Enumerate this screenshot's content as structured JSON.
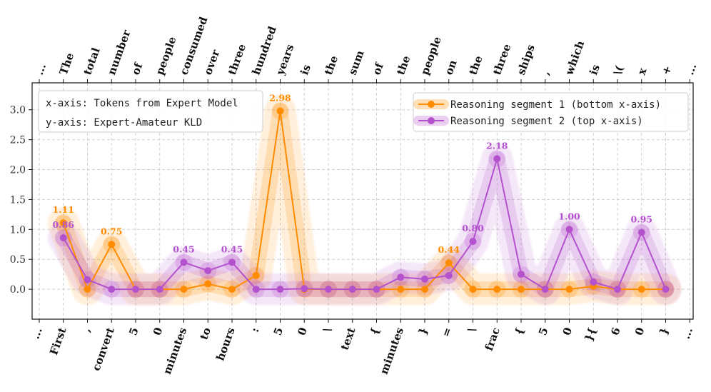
{
  "chart_data": {
    "type": "line",
    "title": "",
    "ylim": [
      -0.5,
      3.45
    ],
    "yticks": [
      0.0,
      0.5,
      1.0,
      1.5,
      2.0,
      2.5,
      3.0
    ],
    "ytick_labels": [
      "0.0",
      "0.5",
      "1.0",
      "1.5",
      "2.0",
      "2.5",
      "3.0"
    ],
    "grid": true,
    "axis_note": {
      "x": "x-axis: Tokens from Expert Model",
      "y": "y-axis: Expert-Amateur KLD"
    },
    "bottom_tokens": [
      "...",
      "First",
      ",",
      "convert",
      "5",
      "0",
      "minutes",
      "to",
      "hours",
      ":",
      "5",
      "0",
      "\\",
      "text",
      "{",
      "minutes",
      "}",
      "=",
      "\\",
      "frac",
      "{",
      "5",
      "0",
      "}{",
      "6",
      "0",
      "}",
      "..."
    ],
    "top_tokens": [
      "...",
      "The",
      "total",
      "number",
      "of",
      "people",
      "consumed",
      "over",
      "three",
      "hundred",
      "years",
      "is",
      "the",
      "sum",
      "of",
      "the",
      "people",
      "on",
      "the",
      "three",
      "ships",
      ",",
      "which",
      "is",
      "\\(",
      "x",
      "+",
      "..."
    ],
    "series": [
      {
        "name": "Reasoning segment 1 (bottom x-axis)",
        "color": "#ff8c00",
        "x": [
          1,
          2,
          3,
          4,
          5,
          6,
          7,
          8,
          9,
          10,
          11,
          12,
          13,
          14,
          15,
          16,
          17,
          18,
          19,
          20,
          21,
          22,
          23,
          24,
          25,
          26
        ],
        "values": [
          1.11,
          0.0,
          0.75,
          0.0,
          0.0,
          0.0,
          0.09,
          0.0,
          0.23,
          2.98,
          0.0,
          0.0,
          0.0,
          0.0,
          0.0,
          0.0,
          0.44,
          0.0,
          0.0,
          0.0,
          0.0,
          0.0,
          0.05,
          0.0,
          0.0,
          0.0
        ],
        "labels": [
          {
            "i": 0,
            "text": "1.11"
          },
          {
            "i": 2,
            "text": "0.75"
          },
          {
            "i": 9,
            "text": "2.98"
          },
          {
            "i": 16,
            "text": "0.44"
          }
        ]
      },
      {
        "name": "Reasoning segment 2 (top x-axis)",
        "color": "#b452cd",
        "x": [
          1,
          2,
          3,
          4,
          5,
          6,
          7,
          8,
          9,
          10,
          11,
          12,
          13,
          14,
          15,
          16,
          17,
          18,
          19,
          20,
          21,
          22,
          23,
          24,
          25,
          26
        ],
        "values": [
          0.86,
          0.16,
          0.0,
          0.0,
          0.0,
          0.45,
          0.31,
          0.45,
          0.0,
          0.0,
          0.01,
          0.0,
          0.0,
          0.0,
          0.2,
          0.17,
          0.23,
          0.8,
          2.18,
          0.25,
          0.0,
          1.0,
          0.12,
          0.0,
          0.95,
          0.0
        ],
        "labels": [
          {
            "i": 0,
            "text": "0.86"
          },
          {
            "i": 5,
            "text": "0.45"
          },
          {
            "i": 7,
            "text": "0.45"
          },
          {
            "i": 17,
            "text": "0.80"
          },
          {
            "i": 18,
            "text": "2.18"
          },
          {
            "i": 21,
            "text": "1.00"
          },
          {
            "i": 24,
            "text": "0.95"
          }
        ]
      }
    ],
    "legend_position": "top-right"
  }
}
